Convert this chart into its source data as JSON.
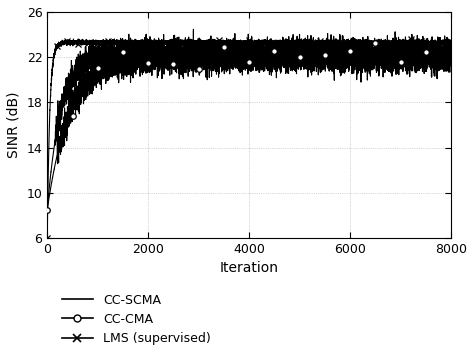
{
  "title": "",
  "xlabel": "Iteration",
  "ylabel": "SINR (dB)",
  "xlim": [
    0,
    8000
  ],
  "ylim": [
    6,
    26
  ],
  "yticks": [
    6,
    10,
    14,
    18,
    22,
    26
  ],
  "xticks": [
    0,
    2000,
    4000,
    6000,
    8000
  ],
  "n_points": 8000,
  "seed": 42,
  "cc_scma_start": 8.5,
  "cc_scma_plateau": 22.3,
  "cc_scma_plateau_noise": 0.55,
  "cc_scma_ramp_speed": 6.0,
  "cc_scma_ramp_end": 1600,
  "cc_cma_start": 8.5,
  "cc_cma_plateau": 22.0,
  "cc_cma_plateau_noise": 0.6,
  "cc_cma_ramp_speed": 4.5,
  "cc_cma_ramp_end": 2000,
  "cc_cma_marker_every": 500,
  "lms_start": 6.0,
  "lms_plateau": 23.3,
  "lms_plateau_noise": 0.1,
  "lms_ramp_speed": 10.0,
  "lms_ramp_end": 500,
  "lms_marker_every": 200,
  "background_color": "#ffffff",
  "line_color": "#000000",
  "grid_color": "#b0b0b0",
  "legend_labels": [
    "CC-SCMA",
    "CC-CMA",
    "LMS (supervised)"
  ]
}
